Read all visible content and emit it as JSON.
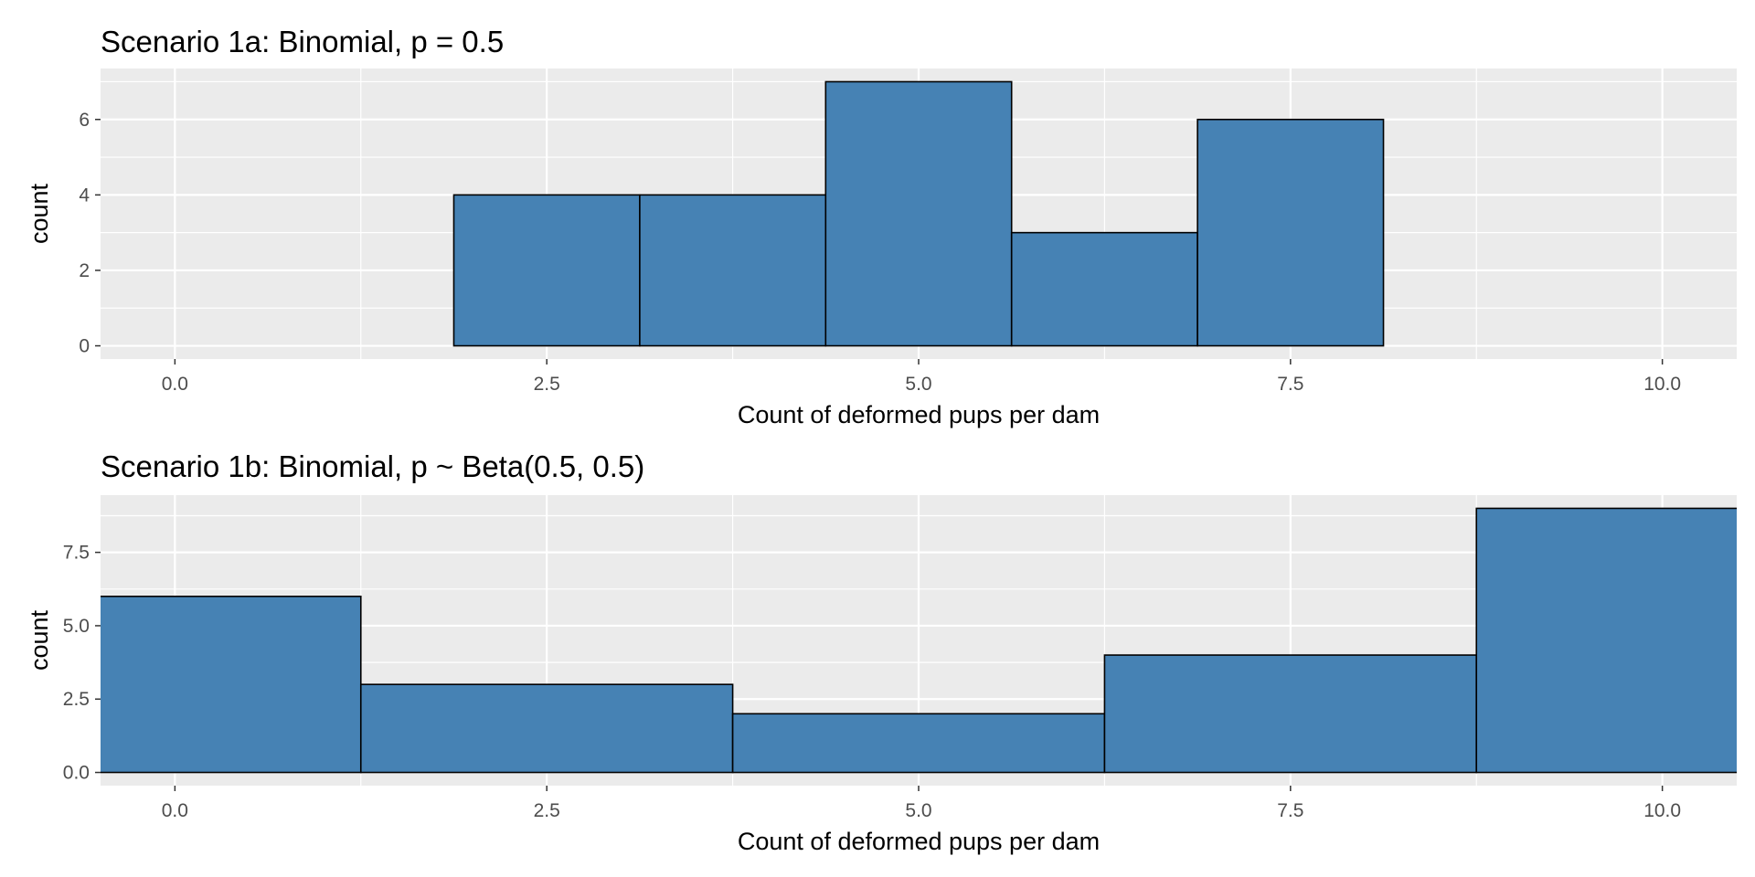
{
  "chart_data": [
    {
      "type": "bar",
      "title": "Scenario 1a: Binomial, p = 0.5",
      "xlabel": "Count of deformed pups per dam",
      "ylabel": "count",
      "xlim": [
        -0.5,
        10.5
      ],
      "ylim": [
        0,
        7
      ],
      "x_ticks": [
        "0.0",
        "2.5",
        "5.0",
        "7.5",
        "10.0"
      ],
      "x_tick_values": [
        0,
        2.5,
        5,
        7.5,
        10
      ],
      "y_ticks": [
        "0",
        "2",
        "4",
        "6"
      ],
      "y_tick_values": [
        0,
        2,
        4,
        6
      ],
      "bins": [
        {
          "x0": 1.875,
          "x1": 3.125,
          "value": 4
        },
        {
          "x0": 3.125,
          "x1": 4.375,
          "value": 4
        },
        {
          "x0": 4.375,
          "x1": 5.625,
          "value": 7
        },
        {
          "x0": 5.625,
          "x1": 6.875,
          "value": 3
        },
        {
          "x0": 6.875,
          "x1": 8.125,
          "value": 6
        }
      ],
      "grid": true,
      "fill_color": "#4682b4",
      "outline_color": "#000000",
      "panel_color": "#ebebeb"
    },
    {
      "type": "bar",
      "title": "Scenario 1b: Binomial, p ~ Beta(0.5, 0.5)",
      "xlabel": "Count of deformed pups per dam",
      "ylabel": "count",
      "xlim": [
        -0.5,
        10.5
      ],
      "ylim": [
        0,
        9
      ],
      "x_ticks": [
        "0.0",
        "2.5",
        "5.0",
        "7.5",
        "10.0"
      ],
      "x_tick_values": [
        0,
        2.5,
        5,
        7.5,
        10
      ],
      "y_ticks": [
        "0.0",
        "2.5",
        "5.0",
        "7.5"
      ],
      "y_tick_values": [
        0,
        2.5,
        5,
        7.5
      ],
      "bins": [
        {
          "x0": -1.25,
          "x1": 1.25,
          "value": 6
        },
        {
          "x0": 1.25,
          "x1": 3.75,
          "value": 3
        },
        {
          "x0": 3.75,
          "x1": 6.25,
          "value": 2
        },
        {
          "x0": 6.25,
          "x1": 8.75,
          "value": 4
        },
        {
          "x0": 8.75,
          "x1": 11.25,
          "value": 9
        }
      ],
      "grid": true,
      "fill_color": "#4682b4",
      "outline_color": "#000000",
      "panel_color": "#ebebeb"
    }
  ]
}
